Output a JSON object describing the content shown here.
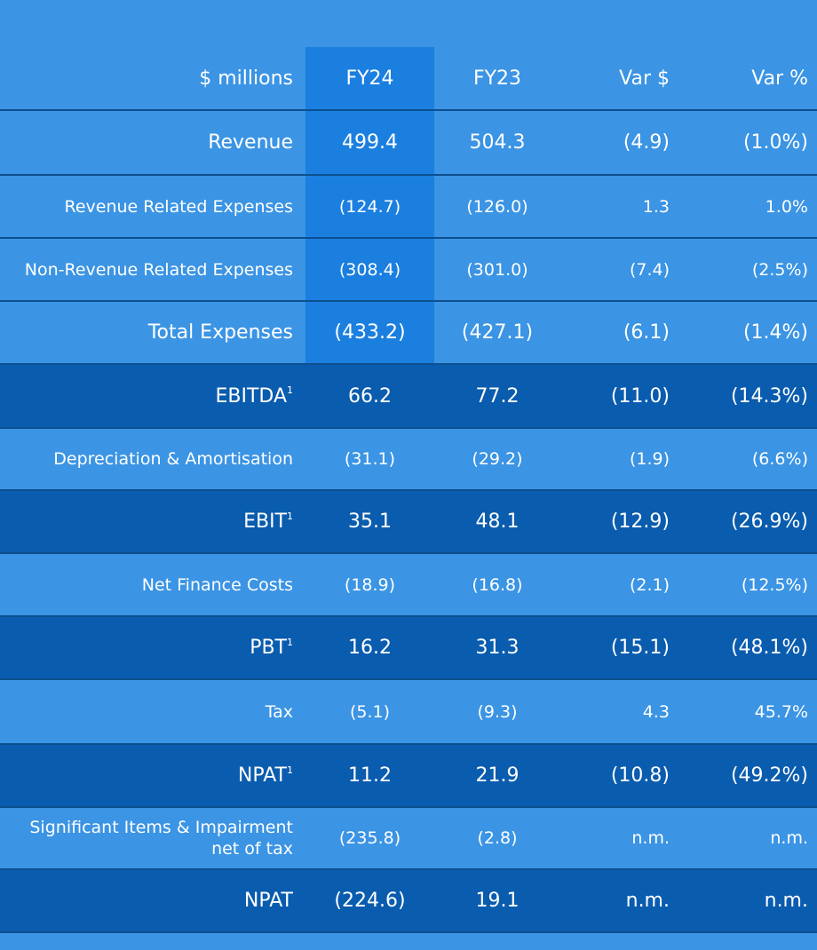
{
  "headers": [
    "$ millions",
    "FY24",
    "FY23",
    "Var $",
    "Var %"
  ],
  "rows": [
    {
      "label": "Revenue",
      "sup": "",
      "fy24": "499.4",
      "fy23": "504.3",
      "var": "(4.9)",
      "pct": "(1.0%)"
    },
    {
      "label": "Revenue Related Expenses",
      "sup": "",
      "fy24": "(124.7)",
      "fy23": "(126.0)",
      "var": "1.3",
      "pct": "1.0%"
    },
    {
      "label": "Non-Revenue Related Expenses",
      "sup": "",
      "fy24": "(308.4)",
      "fy23": "(301.0)",
      "var": "(7.4)",
      "pct": "(2.5%)"
    },
    {
      "label": "Total Expenses",
      "sup": "",
      "fy24": "(433.2)",
      "fy23": "(427.1)",
      "var": "(6.1)",
      "pct": "(1.4%)"
    },
    {
      "label": "EBITDA",
      "sup": "1",
      "fy24": "66.2",
      "fy23": "77.2",
      "var": "(11.0)",
      "pct": "(14.3%)"
    },
    {
      "label": "Depreciation & Amortisation",
      "sup": "",
      "fy24": "(31.1)",
      "fy23": "(29.2)",
      "var": "(1.9)",
      "pct": "(6.6%)"
    },
    {
      "label": "EBIT",
      "sup": "1",
      "fy24": "35.1",
      "fy23": "48.1",
      "var": "(12.9)",
      "pct": "(26.9%)"
    },
    {
      "label": "Net Finance Costs",
      "sup": "",
      "fy24": "(18.9)",
      "fy23": "(16.8)",
      "var": "(2.1)",
      "pct": "(12.5%)"
    },
    {
      "label": "PBT",
      "sup": "1",
      "fy24": "16.2",
      "fy23": "31.3",
      "var": "(15.1)",
      "pct": "(48.1%)"
    },
    {
      "label": "Tax",
      "sup": "",
      "fy24": "(5.1)",
      "fy23": "(9.3)",
      "var": "4.3",
      "pct": "45.7%"
    },
    {
      "label": "NPAT",
      "sup": "1",
      "fy24": "11.2",
      "fy23": "21.9",
      "var": "(10.8)",
      "pct": "(49.2%)"
    },
    {
      "label": "Significant Items & Impairment net of tax",
      "sup": "",
      "fy24": "(235.8)",
      "fy23": "(2.8)",
      "var": "n.m.",
      "pct": "n.m."
    },
    {
      "label": "NPAT",
      "sup": "",
      "fy24": "(224.6)",
      "fy23": "19.1",
      "var": "n.m.",
      "pct": "n.m."
    }
  ]
}
